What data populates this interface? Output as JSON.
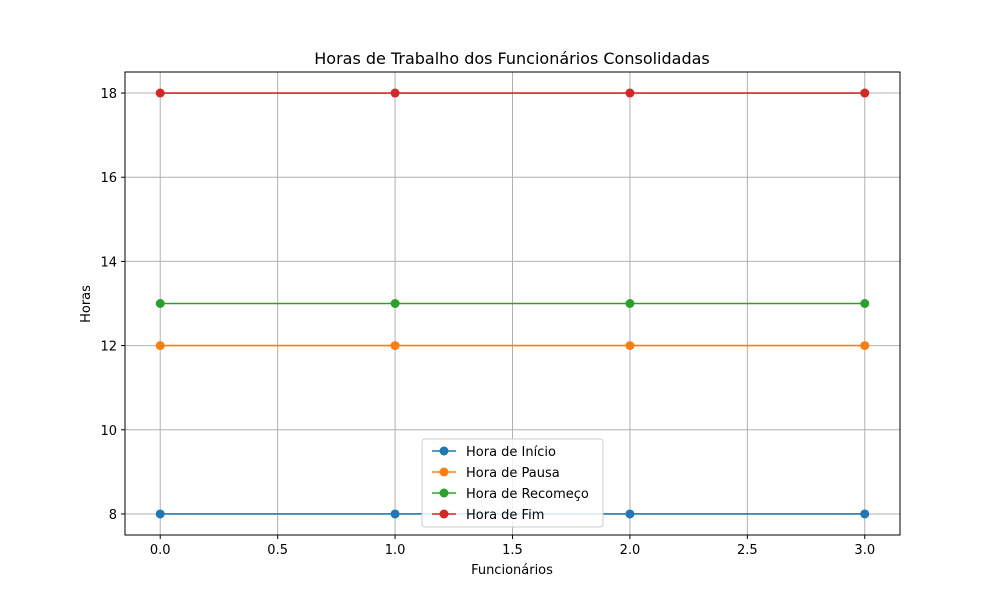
{
  "chart_data": {
    "type": "line",
    "title": "Horas de Trabalho dos Funcionários Consolidadas",
    "xlabel": "Funcionários",
    "ylabel": "Horas",
    "x": [
      0,
      1,
      2,
      3
    ],
    "xlim": [
      -0.15,
      3.15
    ],
    "ylim": [
      7.5,
      18.5
    ],
    "xticks": [
      "0.0",
      "0.5",
      "1.0",
      "1.5",
      "2.0",
      "2.5",
      "3.0"
    ],
    "yticks": [
      "8",
      "10",
      "12",
      "14",
      "16",
      "18"
    ],
    "grid": true,
    "legend_position": "bottom-center",
    "series": [
      {
        "name": "Hora de Início",
        "values": [
          8,
          8,
          8,
          8
        ],
        "color": "#1f77b4"
      },
      {
        "name": "Hora de Pausa",
        "values": [
          12,
          12,
          12,
          12
        ],
        "color": "#ff7f0e"
      },
      {
        "name": "Hora de Recomeço",
        "values": [
          13,
          13,
          13,
          13
        ],
        "color": "#2ca02c"
      },
      {
        "name": "Hora de Fim",
        "values": [
          18,
          18,
          18,
          18
        ],
        "color": "#d62728"
      }
    ]
  }
}
